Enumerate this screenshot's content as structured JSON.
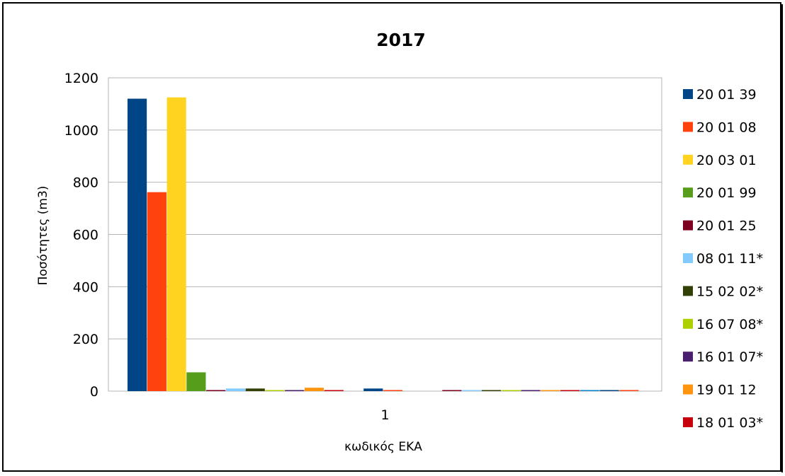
{
  "chart_data": {
    "type": "bar",
    "title": "2017",
    "xlabel": "κωδικός ΕΚΑ",
    "ylabel": "Ποσότητες (m3)",
    "categories": [
      "1"
    ],
    "ylim": [
      0,
      1200
    ],
    "yticks": [
      "0",
      "200",
      "400",
      "600",
      "800",
      "1000",
      "1200"
    ],
    "grid": true,
    "legend_position": "right",
    "legend": [
      {
        "name": "20 01 39",
        "color": "#004586"
      },
      {
        "name": "20 01 08",
        "color": "#ff420e"
      },
      {
        "name": "20 03 01",
        "color": "#ffd320"
      },
      {
        "name": "20 01 99",
        "color": "#579d1c"
      },
      {
        "name": "20 01 25",
        "color": "#7e0021"
      },
      {
        "name": "08 01 11*",
        "color": "#83caff"
      },
      {
        "name": "15 02 02*",
        "color": "#314004"
      },
      {
        "name": "16 07 08*",
        "color": "#aecf00"
      },
      {
        "name": "16 01 07*",
        "color": "#4b1f6f"
      },
      {
        "name": "19 01 12",
        "color": "#ff950e"
      },
      {
        "name": "18 01 03*",
        "color": "#c5000b"
      }
    ],
    "bars": [
      {
        "value": 1120,
        "color": "#004586"
      },
      {
        "value": 762,
        "color": "#ff420e"
      },
      {
        "value": 1125,
        "color": "#ffd320"
      },
      {
        "value": 72,
        "color": "#579d1c"
      },
      {
        "value": 2,
        "color": "#7e0021"
      },
      {
        "value": 10,
        "color": "#83caff"
      },
      {
        "value": 10,
        "color": "#314004"
      },
      {
        "value": 2,
        "color": "#aecf00"
      },
      {
        "value": 2,
        "color": "#4b1f6f"
      },
      {
        "value": 13,
        "color": "#ff950e"
      },
      {
        "value": 2,
        "color": "#c5000b"
      },
      {
        "value": 0,
        "color": "#0084d1"
      },
      {
        "value": 10,
        "color": "#004586"
      },
      {
        "value": 2,
        "color": "#ff420e"
      },
      {
        "value": 0,
        "color": "#ffd320"
      },
      {
        "value": 0,
        "color": "#579d1c"
      },
      {
        "value": 2,
        "color": "#7e0021"
      },
      {
        "value": 2,
        "color": "#83caff"
      },
      {
        "value": 2,
        "color": "#314004"
      },
      {
        "value": 2,
        "color": "#aecf00"
      },
      {
        "value": 2,
        "color": "#4b1f6f"
      },
      {
        "value": 2,
        "color": "#ff950e"
      },
      {
        "value": 2,
        "color": "#c5000b"
      },
      {
        "value": 2,
        "color": "#0084d1"
      },
      {
        "value": 2,
        "color": "#004586"
      },
      {
        "value": 2,
        "color": "#ff420e"
      }
    ]
  }
}
